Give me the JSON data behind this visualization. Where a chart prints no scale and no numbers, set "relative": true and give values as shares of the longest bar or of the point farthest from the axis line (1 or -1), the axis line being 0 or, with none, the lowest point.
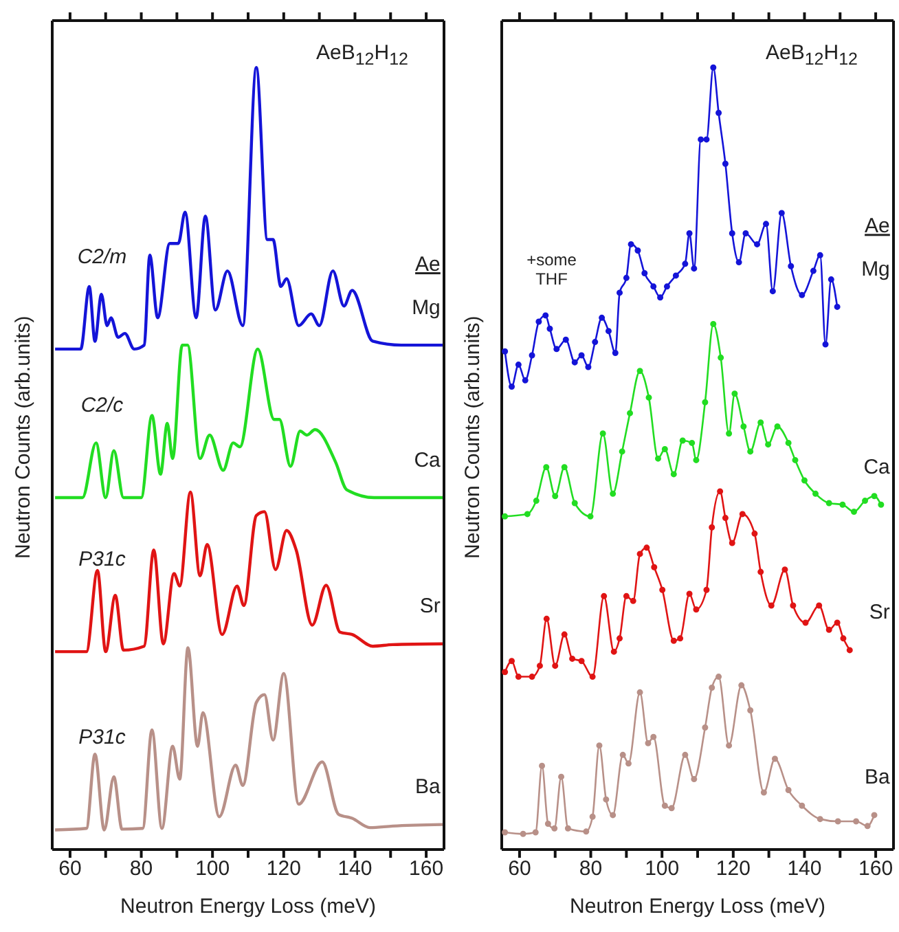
{
  "chart_data": [
    {
      "type": "line",
      "title": "AeB$_{12}$H$_{12}$",
      "xlabel": "Neutron Energy Loss (meV)",
      "ylabel": "Neutron Counts (arb.units)",
      "legend_title": "Ae",
      "relative": true,
      "marker": "none",
      "xlim": [
        55,
        165
      ],
      "xticks": [
        60,
        {
          "value": 70,
          "label": null
        },
        80,
        {
          "value": 90,
          "label": null
        },
        100,
        {
          "value": 110,
          "label": null
        },
        120,
        {
          "value": 130,
          "label": null
        },
        140,
        {
          "value": 150,
          "label": null
        },
        160
      ],
      "annotations": [
        "C2/m",
        "C2/c",
        "P31c",
        "P31c"
      ],
      "series": [
        {
          "name": "Mg",
          "color": "#1414d8",
          "x": [
            55.8,
            63,
            65.4,
            67,
            68.8,
            70.4,
            71.5,
            73.5,
            75.4,
            78,
            80.8,
            82.4,
            84.6,
            88,
            90.4,
            92.3,
            95.4,
            98,
            100.8,
            104.2,
            108.5,
            112.3,
            115.4,
            117,
            119.2,
            120.8,
            124.2,
            127.7,
            130,
            133.8,
            136.9,
            139.2,
            145,
            153,
            164.6
          ],
          "values": [
            0.64,
            0.64,
            0.72,
            0.65,
            0.71,
            0.67,
            0.68,
            0.655,
            0.66,
            0.64,
            0.645,
            0.76,
            0.68,
            0.775,
            0.775,
            0.815,
            0.68,
            0.81,
            0.69,
            0.74,
            0.67,
            1.0,
            0.78,
            0.78,
            0.72,
            0.73,
            0.67,
            0.685,
            0.67,
            0.74,
            0.695,
            0.715,
            0.65,
            0.645,
            0.645
          ]
        },
        {
          "name": "Ca",
          "color": "#22dd22",
          "x": [
            55.8,
            63.5,
            67.3,
            70,
            72.3,
            75,
            80,
            83,
            85.4,
            87.3,
            88.8,
            91.5,
            93,
            96.5,
            99.2,
            103,
            105.8,
            107.7,
            112.7,
            117.3,
            118.8,
            121.9,
            124.6,
            126.5,
            128.8,
            134.6,
            137.7,
            145.4,
            164.6
          ],
          "values": [
            0.45,
            0.45,
            0.52,
            0.45,
            0.51,
            0.45,
            0.45,
            0.555,
            0.48,
            0.545,
            0.5,
            0.645,
            0.645,
            0.5,
            0.53,
            0.485,
            0.52,
            0.515,
            0.64,
            0.55,
            0.55,
            0.49,
            0.535,
            0.53,
            0.537,
            0.495,
            0.46,
            0.45,
            0.45
          ]
        },
        {
          "name": "Sr",
          "color": "#e01414",
          "x": [
            55.8,
            64.6,
            67.7,
            70,
            72.7,
            75,
            80.8,
            83.5,
            86.2,
            89.2,
            90.8,
            93.8,
            96.5,
            98.5,
            102.7,
            106.9,
            108.8,
            112.3,
            114.6,
            117.7,
            120.8,
            123.5,
            128,
            131.9,
            135.8,
            139.2,
            145,
            150.6,
            164.6
          ],
          "values": [
            0.253,
            0.253,
            0.357,
            0.253,
            0.325,
            0.255,
            0.26,
            0.383,
            0.263,
            0.353,
            0.337,
            0.457,
            0.35,
            0.39,
            0.275,
            0.337,
            0.312,
            0.427,
            0.432,
            0.358,
            0.408,
            0.383,
            0.287,
            0.338,
            0.278,
            0.275,
            0.26,
            0.262,
            0.263
          ]
        },
        {
          "name": "Ba",
          "color": "#b89088",
          "x": [
            55.8,
            64.6,
            67,
            69.6,
            72.3,
            74.6,
            80.4,
            83,
            85.8,
            88.8,
            90.8,
            93.1,
            95.8,
            97.3,
            101.9,
            106.5,
            108.5,
            112.3,
            114.6,
            117,
            120,
            124.2,
            130.8,
            135.4,
            139.2,
            144.2,
            150.6,
            164.6
          ],
          "values": [
            0.025,
            0.027,
            0.122,
            0.025,
            0.093,
            0.026,
            0.027,
            0.153,
            0.027,
            0.132,
            0.09,
            0.258,
            0.132,
            0.175,
            0.042,
            0.108,
            0.082,
            0.188,
            0.198,
            0.14,
            0.225,
            0.058,
            0.112,
            0.045,
            0.04,
            0.028,
            0.03,
            0.032
          ]
        }
      ]
    },
    {
      "type": "line",
      "title": "AeB$_{12}$H$_{12}$",
      "xlabel": "Neutron Energy Loss (meV)",
      "ylabel": "Neutron Counts (arb.units)",
      "legend_title": "Ae",
      "relative": true,
      "marker": "circle",
      "xlim": [
        55,
        165
      ],
      "xticks": [
        60,
        {
          "value": 70,
          "label": null
        },
        80,
        {
          "value": 90,
          "label": null
        },
        100,
        {
          "value": 110,
          "label": null
        },
        120,
        {
          "value": 130,
          "label": null
        },
        140,
        {
          "value": 150,
          "label": null
        },
        160
      ],
      "annotations": [
        "+some THF"
      ],
      "series": [
        {
          "name": "Mg",
          "color": "#1414d8",
          "x": [
            55.9,
            57.8,
            59.7,
            61.6,
            63.5,
            65.4,
            67.3,
            68.5,
            70.4,
            73,
            75.5,
            77.4,
            79.3,
            81.2,
            83.1,
            85,
            86.9,
            88.1,
            90,
            91.3,
            93.2,
            95.1,
            97.6,
            99.5,
            101.4,
            103.9,
            106.5,
            107.7,
            109,
            110.9,
            112.5,
            114.4,
            115.9,
            117.8,
            119.7,
            121.6,
            123.5,
            126.7,
            129.2,
            131.1,
            133.6,
            136.2,
            139.3,
            142.5,
            144.4,
            145.9,
            147.5,
            149.2
          ],
          "values": [
            0.637,
            0.592,
            0.62,
            0.6,
            0.632,
            0.675,
            0.683,
            0.666,
            0.64,
            0.652,
            0.623,
            0.632,
            0.617,
            0.649,
            0.68,
            0.663,
            0.635,
            0.712,
            0.731,
            0.774,
            0.766,
            0.737,
            0.72,
            0.706,
            0.72,
            0.734,
            0.749,
            0.788,
            0.743,
            0.908,
            0.908,
            1.0,
            0.942,
            0.877,
            0.788,
            0.751,
            0.788,
            0.774,
            0.8,
            0.714,
            0.814,
            0.746,
            0.709,
            0.74,
            0.76,
            0.646,
            0.729,
            0.694
          ]
        },
        {
          "name": "Ca",
          "color": "#22dd22",
          "x": [
            55.9,
            62.2,
            64.7,
            67.5,
            70,
            72.6,
            75.5,
            79.9,
            83.4,
            86.2,
            88.8,
            91,
            93.8,
            96.3,
            98.9,
            100.8,
            103.3,
            105.8,
            108.4,
            109.6,
            112.1,
            114.4,
            116.5,
            118.8,
            120.4,
            122.9,
            124.8,
            127.7,
            129.8,
            132.4,
            135.5,
            137.4,
            140,
            143.1,
            146.9,
            150.7,
            153.9,
            157,
            159.6,
            161.5
          ],
          "values": [
            0.426,
            0.429,
            0.446,
            0.489,
            0.452,
            0.489,
            0.443,
            0.426,
            0.532,
            0.455,
            0.509,
            0.558,
            0.612,
            0.578,
            0.5,
            0.512,
            0.48,
            0.523,
            0.52,
            0.498,
            0.572,
            0.672,
            0.629,
            0.532,
            0.583,
            0.541,
            0.509,
            0.546,
            0.518,
            0.541,
            0.52,
            0.498,
            0.472,
            0.455,
            0.443,
            0.441,
            0.432,
            0.446,
            0.452,
            0.441
          ]
        },
        {
          "name": "Sr",
          "color": "#e01414",
          "x": [
            55.9,
            57.8,
            59.7,
            63.5,
            65.7,
            67.6,
            70,
            72.6,
            74.8,
            77.4,
            80.5,
            83.7,
            86.5,
            88.1,
            90,
            91.9,
            93.8,
            95.7,
            97.8,
            100.1,
            103.3,
            105.1,
            107.7,
            109.6,
            112.5,
            114,
            116.3,
            117.8,
            119.7,
            122.6,
            126,
            127.7,
            130.7,
            134.5,
            136.8,
            140.3,
            144.1,
            146.9,
            149.2,
            150.9,
            152.7
          ],
          "values": [
            0.227,
            0.241,
            0.221,
            0.221,
            0.235,
            0.295,
            0.235,
            0.275,
            0.244,
            0.241,
            0.221,
            0.324,
            0.253,
            0.27,
            0.324,
            0.318,
            0.378,
            0.386,
            0.361,
            0.332,
            0.267,
            0.27,
            0.327,
            0.307,
            0.332,
            0.412,
            0.458,
            0.424,
            0.392,
            0.429,
            0.404,
            0.355,
            0.312,
            0.358,
            0.312,
            0.29,
            0.312,
            0.281,
            0.29,
            0.27,
            0.255
          ]
        },
        {
          "name": "Ba",
          "color": "#b89088",
          "x": [
            55.9,
            61,
            64.5,
            66.3,
            68,
            69.8,
            71.7,
            73.6,
            78.7,
            80.5,
            82.4,
            84.3,
            86.2,
            89,
            90.6,
            93.8,
            96.1,
            97.6,
            100.8,
            102.7,
            106.5,
            109,
            112.1,
            114,
            115.9,
            118.8,
            122.3,
            124.8,
            128.6,
            131.7,
            135.5,
            139.3,
            144.4,
            149.4,
            154.5,
            157.7,
            159.6
          ],
          "values": [
            0.022,
            0.02,
            0.022,
            0.107,
            0.033,
            0.027,
            0.093,
            0.027,
            0.023,
            0.042,
            0.133,
            0.064,
            0.044,
            0.121,
            0.11,
            0.201,
            0.136,
            0.144,
            0.056,
            0.053,
            0.121,
            0.09,
            0.156,
            0.207,
            0.221,
            0.133,
            0.21,
            0.178,
            0.073,
            0.116,
            0.076,
            0.056,
            0.039,
            0.036,
            0.036,
            0.03,
            0.044
          ]
        }
      ]
    }
  ]
}
